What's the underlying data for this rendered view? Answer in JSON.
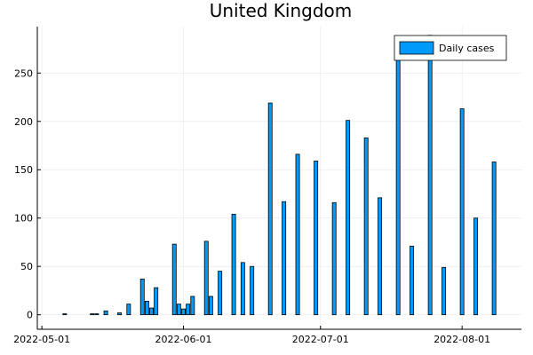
{
  "chart_data": {
    "type": "bar",
    "title": "United Kingdom",
    "xlabel": "",
    "ylabel": "",
    "x_axis_type": "date",
    "xlim": [
      "2022-04-30",
      "2022-08-14"
    ],
    "ylim": [
      -15,
      298
    ],
    "x_ticks": [
      "2022-05-01",
      "2022-06-01",
      "2022-07-01",
      "2022-08-01"
    ],
    "y_ticks": [
      0,
      50,
      100,
      150,
      200,
      250
    ],
    "grid": true,
    "legend_position": "top-right",
    "bar_color": "#009AFA",
    "series": [
      {
        "name": "Daily cases",
        "points": [
          {
            "x": "2022-05-06",
            "y": 1
          },
          {
            "x": "2022-05-12",
            "y": 1
          },
          {
            "x": "2022-05-13",
            "y": 1
          },
          {
            "x": "2022-05-15",
            "y": 4
          },
          {
            "x": "2022-05-18",
            "y": 2
          },
          {
            "x": "2022-05-20",
            "y": 11
          },
          {
            "x": "2022-05-23",
            "y": 37
          },
          {
            "x": "2022-05-24",
            "y": 14
          },
          {
            "x": "2022-05-25",
            "y": 7
          },
          {
            "x": "2022-05-26",
            "y": 28
          },
          {
            "x": "2022-05-30",
            "y": 73
          },
          {
            "x": "2022-05-31",
            "y": 11
          },
          {
            "x": "2022-06-01",
            "y": 6
          },
          {
            "x": "2022-06-02",
            "y": 11
          },
          {
            "x": "2022-06-03",
            "y": 19
          },
          {
            "x": "2022-06-06",
            "y": 76
          },
          {
            "x": "2022-06-07",
            "y": 19
          },
          {
            "x": "2022-06-09",
            "y": 45
          },
          {
            "x": "2022-06-12",
            "y": 104
          },
          {
            "x": "2022-06-14",
            "y": 54
          },
          {
            "x": "2022-06-16",
            "y": 50
          },
          {
            "x": "2022-06-20",
            "y": 219
          },
          {
            "x": "2022-06-23",
            "y": 117
          },
          {
            "x": "2022-06-26",
            "y": 166
          },
          {
            "x": "2022-06-30",
            "y": 159
          },
          {
            "x": "2022-07-04",
            "y": 116
          },
          {
            "x": "2022-07-07",
            "y": 201
          },
          {
            "x": "2022-07-11",
            "y": 183
          },
          {
            "x": "2022-07-14",
            "y": 121
          },
          {
            "x": "2022-07-18",
            "y": 270
          },
          {
            "x": "2022-07-21",
            "y": 71
          },
          {
            "x": "2022-07-25",
            "y": 289
          },
          {
            "x": "2022-07-28",
            "y": 49
          },
          {
            "x": "2022-08-01",
            "y": 213
          },
          {
            "x": "2022-08-04",
            "y": 100
          },
          {
            "x": "2022-08-08",
            "y": 158
          }
        ]
      }
    ]
  }
}
